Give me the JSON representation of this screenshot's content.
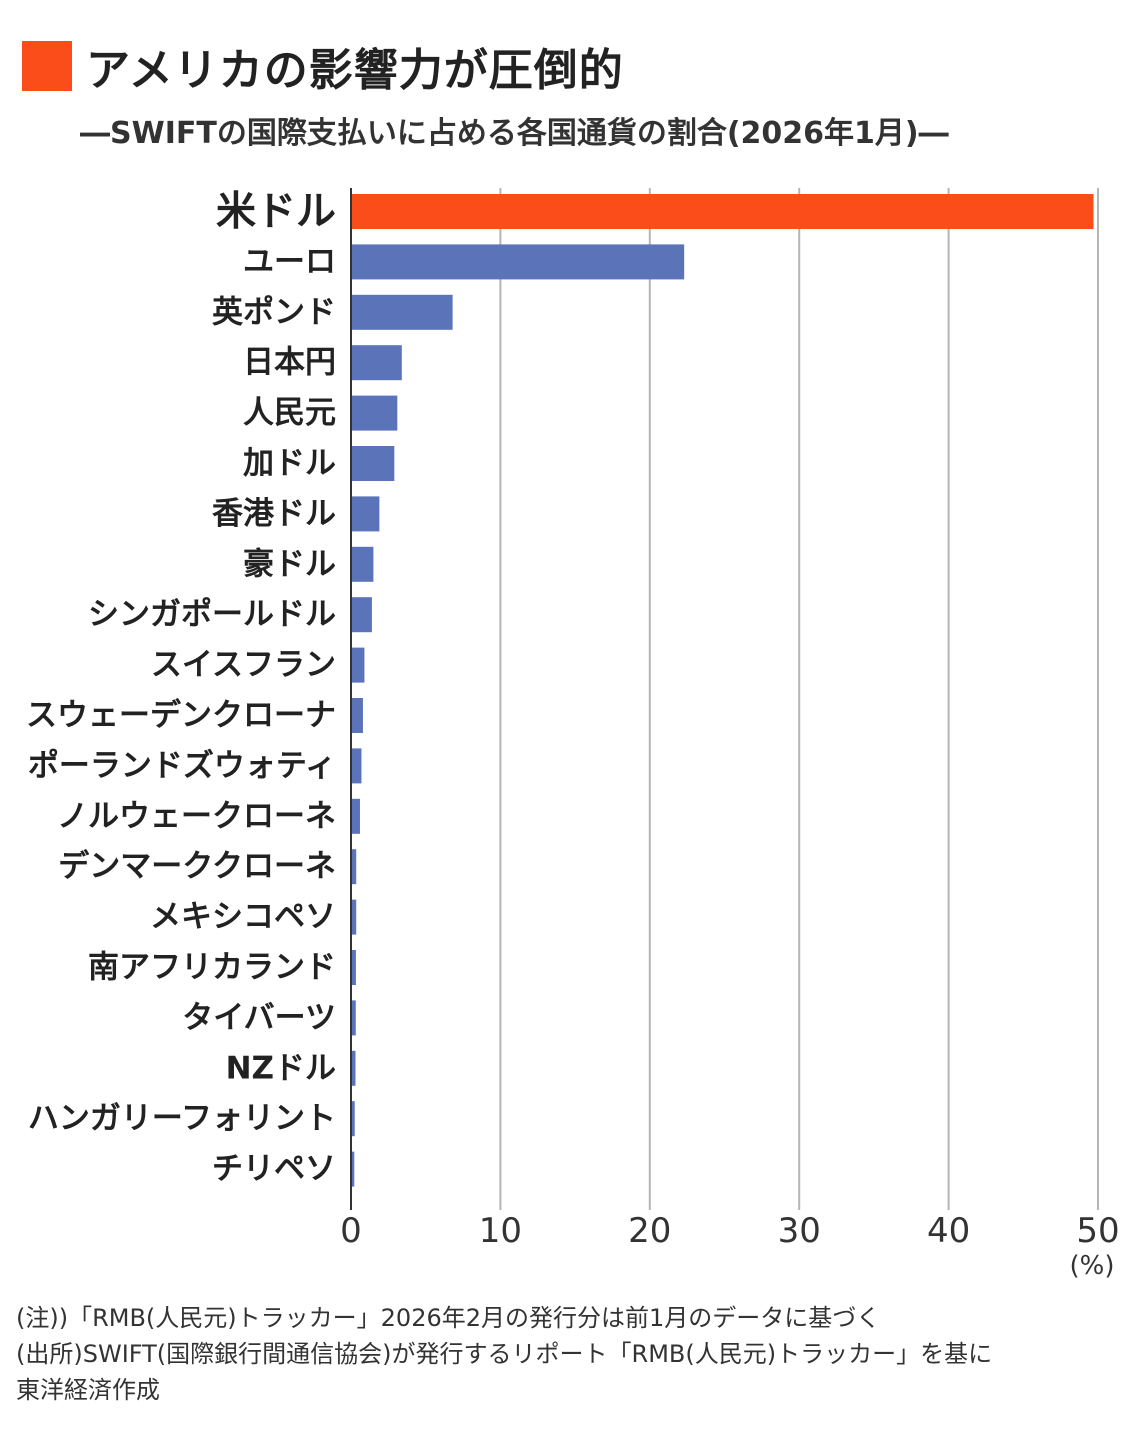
{
  "title": "アメリカの影響力が圧倒的",
  "subtitle": "―SWIFTの国際支払いに占める各国通貨の割合(2026年1月)―",
  "colors": {
    "accent": "#FB4D1A",
    "bar": "#5B73B8",
    "grid": "#b5b5b5"
  },
  "chart_data": {
    "type": "bar",
    "orientation": "horizontal",
    "categories": [
      "米ドル",
      "ユーロ",
      "英ポンド",
      "日本円",
      "人民元",
      "加ドル",
      "香港ドル",
      "豪ドル",
      "シンガポールドル",
      "スイスフラン",
      "スウェーデンクローナ",
      "ポーランドズウォティ",
      "ノルウェークローネ",
      "デンマーククローネ",
      "メキシコペソ",
      "南アフリカランド",
      "タイバーツ",
      "NZドル",
      "ハンガリーフォリント",
      "チリペソ"
    ],
    "values": [
      49.7,
      22.3,
      6.8,
      3.4,
      3.1,
      2.9,
      1.9,
      1.5,
      1.4,
      0.9,
      0.8,
      0.7,
      0.6,
      0.35,
      0.35,
      0.33,
      0.32,
      0.3,
      0.25,
      0.22
    ],
    "highlight_index": 0,
    "xlim": [
      0,
      50
    ],
    "xticks": [
      "0",
      "10",
      "20",
      "30",
      "40",
      "50"
    ],
    "xunit": "(%)",
    "grid": true
  },
  "notes": [
    "(注))「RMB(人民元)トラッカー」2026年2月の発行分は前1月のデータに基づく",
    "(出所)SWIFT(国際銀行間通信協会)が発行するリポート「RMB(人民元)トラッカー」を基に",
    "東洋経済作成"
  ]
}
